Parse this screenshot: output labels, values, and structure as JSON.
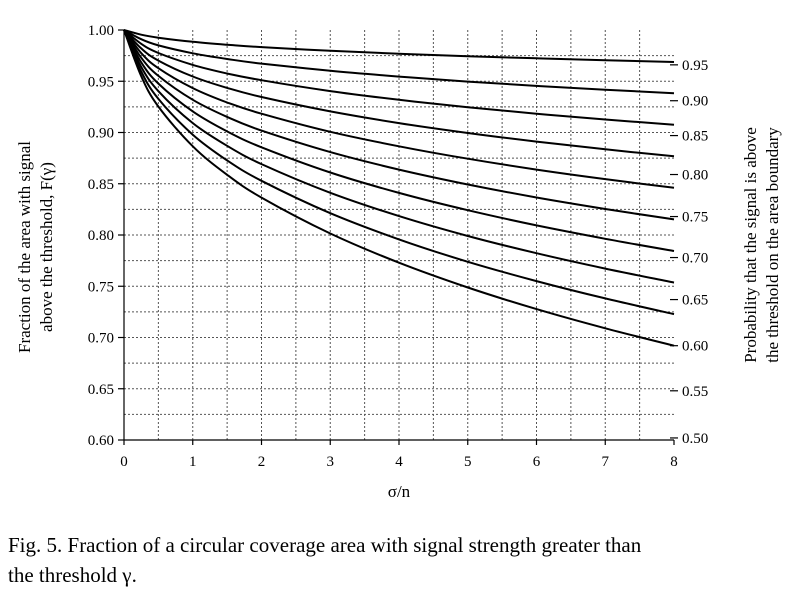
{
  "chart_data": {
    "type": "line",
    "xlabel": "σ/n",
    "ylabel_line1": "Fraction of the area with signal",
    "ylabel_line2": "above the threshold, F(γ)",
    "right_label_line1": "Probability that the signal is above",
    "right_label_line2": "the threshold on the area boundary",
    "xlim": [
      0,
      8
    ],
    "ylim": [
      0.6,
      1.0
    ],
    "x_ticks": [
      "0",
      "1",
      "2",
      "3",
      "4",
      "5",
      "6",
      "7",
      "8"
    ],
    "y_ticks": [
      "0.60",
      "0.65",
      "0.70",
      "0.75",
      "0.80",
      "0.85",
      "0.90",
      "0.95",
      "1.00"
    ],
    "grid": true,
    "series": [
      {
        "name": "0.95",
        "x": [
          0,
          0.25,
          0.5,
          1,
          1.5,
          2,
          3,
          4,
          5,
          6,
          7,
          8
        ],
        "y": [
          1.0,
          0.9954,
          0.9925,
          0.9885,
          0.9856,
          0.9833,
          0.9797,
          0.9768,
          0.9744,
          0.9724,
          0.9705,
          0.9688
        ]
      },
      {
        "name": "0.90",
        "x": [
          0,
          0.25,
          0.5,
          1,
          1.5,
          2,
          3,
          4,
          5,
          6,
          7,
          8
        ],
        "y": [
          1.0,
          0.991,
          0.985,
          0.9773,
          0.9717,
          0.9672,
          0.9602,
          0.9545,
          0.9497,
          0.9455,
          0.9418,
          0.9383
        ]
      },
      {
        "name": "0.85",
        "x": [
          0,
          0.25,
          0.5,
          1,
          1.5,
          2,
          3,
          4,
          5,
          6,
          7,
          8
        ],
        "y": [
          1.0,
          0.9865,
          0.9776,
          0.966,
          0.9576,
          0.951,
          0.9404,
          0.9319,
          0.9246,
          0.9183,
          0.9127,
          0.9076
        ]
      },
      {
        "name": "0.80",
        "x": [
          0,
          0.25,
          0.5,
          1,
          1.5,
          2,
          3,
          4,
          5,
          6,
          7,
          8
        ],
        "y": [
          1.0,
          0.982,
          0.9701,
          0.9546,
          0.9435,
          0.9346,
          0.9206,
          0.9092,
          0.8995,
          0.8911,
          0.8836,
          0.8768
        ]
      },
      {
        "name": "0.75",
        "x": [
          0,
          0.25,
          0.5,
          1,
          1.5,
          2,
          3,
          4,
          5,
          6,
          7,
          8
        ],
        "y": [
          1.0,
          0.9775,
          0.9627,
          0.9433,
          0.9293,
          0.9183,
          0.9007,
          0.8865,
          0.8744,
          0.8638,
          0.8545,
          0.846
        ]
      },
      {
        "name": "0.70",
        "x": [
          0,
          0.25,
          0.5,
          1,
          1.5,
          2,
          3,
          4,
          5,
          6,
          7,
          8
        ],
        "y": [
          1.0,
          0.973,
          0.9552,
          0.9319,
          0.9152,
          0.9019,
          0.8809,
          0.8638,
          0.8493,
          0.8366,
          0.8254,
          0.8152
        ]
      },
      {
        "name": "0.65",
        "x": [
          0,
          0.25,
          0.5,
          1,
          1.5,
          2,
          3,
          4,
          5,
          6,
          7,
          8
        ],
        "y": [
          1.0,
          0.9685,
          0.9477,
          0.9206,
          0.9011,
          0.8856,
          0.861,
          0.8411,
          0.8242,
          0.8094,
          0.7963,
          0.7844
        ]
      },
      {
        "name": "0.60",
        "x": [
          0,
          0.25,
          0.5,
          1,
          1.5,
          2,
          3,
          4,
          5,
          6,
          7,
          8
        ],
        "y": [
          1.0,
          0.964,
          0.9403,
          0.9092,
          0.887,
          0.8692,
          0.8412,
          0.8184,
          0.799,
          0.7822,
          0.7672,
          0.7536
        ]
      },
      {
        "name": "0.55",
        "x": [
          0,
          0.25,
          0.5,
          1,
          1.5,
          2,
          3,
          4,
          5,
          6,
          7,
          8
        ],
        "y": [
          1.0,
          0.9595,
          0.9328,
          0.8979,
          0.8728,
          0.8529,
          0.8213,
          0.7957,
          0.7739,
          0.755,
          0.7381,
          0.7228
        ]
      },
      {
        "name": "0.50",
        "x": [
          0,
          0.25,
          0.5,
          1,
          1.5,
          2,
          3,
          4,
          5,
          6,
          7,
          8
        ],
        "y": [
          1.0,
          0.955,
          0.9253,
          0.8865,
          0.8587,
          0.8365,
          0.8015,
          0.773,
          0.7488,
          0.7277,
          0.709,
          0.692
        ]
      }
    ],
    "right_tick_labels": [
      "0.95",
      "0.90",
      "0.85",
      "0.80",
      "0.75",
      "0.70",
      "0.65",
      "0.60",
      "0.55",
      "0.50"
    ],
    "right_tick_y": [
      0.966,
      0.931,
      0.897,
      0.859,
      0.818,
      0.778,
      0.737,
      0.692,
      0.648,
      0.602
    ]
  },
  "caption": {
    "line1": "Fig. 5.  Fraction of a circular coverage area with signal strength greater than",
    "line2": "the threshold γ."
  }
}
